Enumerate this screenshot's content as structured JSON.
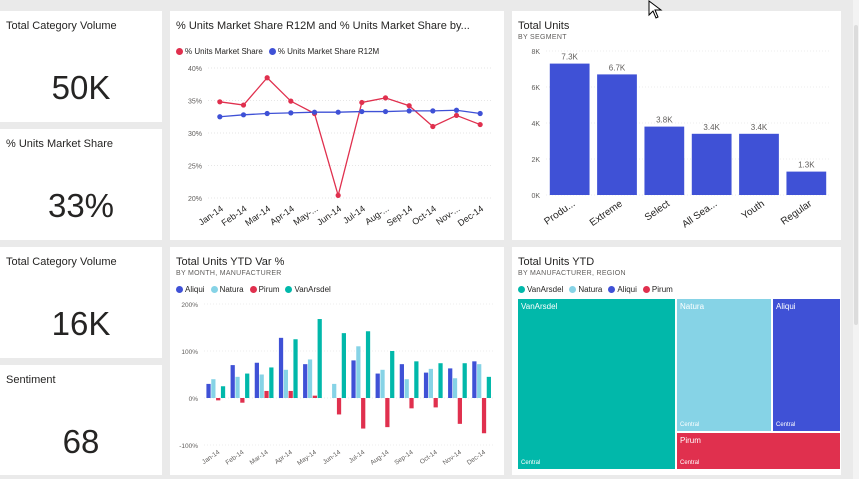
{
  "kpis": [
    {
      "title": "Total Category Volume",
      "value": "50K"
    },
    {
      "title": "% Units Market Share",
      "value": "33%"
    },
    {
      "title": "Total Category Volume",
      "value": "16K"
    },
    {
      "title": "Sentiment",
      "value": "68"
    }
  ],
  "line_chart": {
    "title": "% Units Market Share R12M and % Units Market Share by...",
    "legend": [
      "% Units Market Share",
      "% Units Market Share R12M"
    ],
    "colors": [
      "#e0304e",
      "#3f51d6"
    ]
  },
  "bar_chart": {
    "title": "Total Units",
    "subtitle": "BY SEGMENT",
    "color": "#3f51d6"
  },
  "cluster_chart": {
    "title": "Total Units YTD Var %",
    "subtitle": "BY MONTH, MANUFACTURER",
    "legend": [
      "Aliqui",
      "Natura",
      "Pirum",
      "VanArsdel"
    ],
    "colors": [
      "#3f51d6",
      "#86d3e6",
      "#e0304e",
      "#01b8aa"
    ]
  },
  "treemap": {
    "title": "Total Units YTD",
    "subtitle": "BY MANUFACTURER, REGION",
    "legend": [
      "VanArsdel",
      "Natura",
      "Aliqui",
      "Pirum"
    ],
    "colors": [
      "#01b8aa",
      "#86d3e6",
      "#3f51d6",
      "#e0304e"
    ],
    "cells": [
      {
        "label": "VanArsdel",
        "sub": "Central",
        "color": "#01b8aa"
      },
      {
        "label": "Natura",
        "sub": "Central",
        "color": "#86d3e6"
      },
      {
        "label": "Aliqui",
        "sub": "Central",
        "color": "#3f51d6"
      },
      {
        "label": "Pirum",
        "sub": "Central",
        "color": "#e0304e"
      }
    ]
  },
  "chart_data": [
    {
      "type": "line",
      "title": "% Units Market Share R12M and % Units Market Share by...",
      "categories": [
        "Jan-14",
        "Feb-14",
        "Mar-14",
        "Apr-14",
        "May-...",
        "Jun-14",
        "Jul-14",
        "Aug-...",
        "Sep-14",
        "Oct-14",
        "Nov-...",
        "Dec-14"
      ],
      "ylim": [
        20,
        40
      ],
      "y_ticks": [
        "20%",
        "25%",
        "30%",
        "35%",
        "40%"
      ],
      "series": [
        {
          "name": "% Units Market Share",
          "values": [
            34.8,
            34.3,
            38.5,
            34.9,
            33.0,
            20.4,
            34.7,
            35.4,
            34.2,
            31.0,
            32.7,
            31.3
          ]
        },
        {
          "name": "% Units Market Share R12M",
          "values": [
            32.5,
            32.8,
            33.0,
            33.1,
            33.2,
            33.2,
            33.3,
            33.3,
            33.4,
            33.4,
            33.5,
            33.0
          ]
        }
      ]
    },
    {
      "type": "bar",
      "title": "Total Units",
      "categories": [
        "Produ...",
        "Extreme",
        "Select",
        "All Sea...",
        "Youth",
        "Regular"
      ],
      "values": [
        7.3,
        6.7,
        3.8,
        3.4,
        3.4,
        1.3
      ],
      "data_labels": [
        "7.3K",
        "6.7K",
        "3.8K",
        "3.4K",
        "3.4K",
        "1.3K"
      ],
      "ylim": [
        0,
        8
      ],
      "y_ticks": [
        "0K",
        "2K",
        "4K",
        "6K",
        "8K"
      ]
    },
    {
      "type": "bar",
      "title": "Total Units YTD Var %",
      "categories": [
        "Jan-14",
        "Feb-14",
        "Mar-14",
        "Apr-14",
        "May-14",
        "Jun-14",
        "Jul-14",
        "Aug-14",
        "Sep-14",
        "Oct-14",
        "Nov-14",
        "Dec-14"
      ],
      "ylim": [
        -100,
        200
      ],
      "y_ticks": [
        "-100%",
        "0%",
        "100%",
        "200%"
      ],
      "series": [
        {
          "name": "Aliqui",
          "values": [
            30,
            70,
            75,
            128,
            72,
            0,
            80,
            52,
            72,
            54,
            63,
            78
          ]
        },
        {
          "name": "Natura",
          "values": [
            40,
            45,
            50,
            60,
            82,
            30,
            110,
            60,
            40,
            62,
            42,
            72
          ]
        },
        {
          "name": "Pirum",
          "values": [
            -5,
            -10,
            15,
            15,
            5,
            -35,
            -65,
            -62,
            -22,
            -20,
            -55,
            -75
          ]
        },
        {
          "name": "VanArsdel",
          "values": [
            25,
            52,
            65,
            125,
            168,
            138,
            142,
            100,
            78,
            74,
            74,
            45
          ]
        }
      ]
    }
  ]
}
